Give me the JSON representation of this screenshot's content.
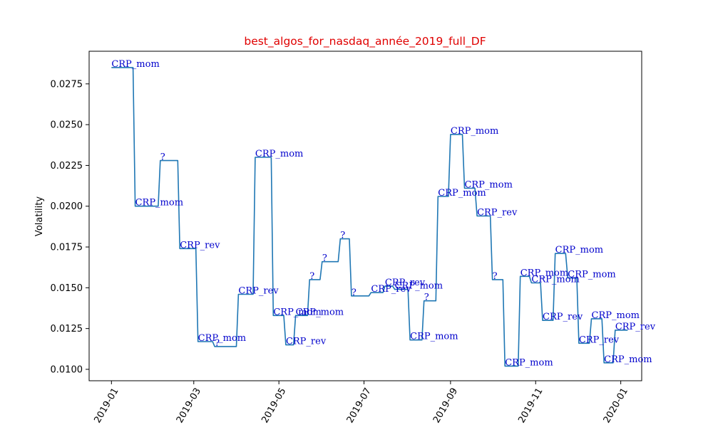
{
  "chart_data": {
    "type": "line",
    "title": "best_algos_for_nasdaq_année_2019_full_DF",
    "title_color": "#e00000",
    "xlabel": "",
    "ylabel": "Volatility",
    "line_color": "#1f77b4",
    "annotation_color": "#0000cc",
    "xlim": [
      "2018-12-16",
      "2020-01-16"
    ],
    "ylim": [
      0.0093,
      0.0295
    ],
    "x_ticks": [
      "2019-01",
      "2019-03",
      "2019-05",
      "2019-07",
      "2019-09",
      "2019-11",
      "2020-01"
    ],
    "y_ticks": [
      "0.0100",
      "0.0125",
      "0.0150",
      "0.0175",
      "0.0200",
      "0.0225",
      "0.0250",
      "0.0275"
    ],
    "grid": false,
    "steps": [
      {
        "x": "2019-01-01",
        "y": 0.0285,
        "label": "CRP_mom"
      },
      {
        "x": "2019-01-18",
        "y": 0.02,
        "label": "CRP_mom"
      },
      {
        "x": "2019-02-05",
        "y": 0.0228,
        "label": "?"
      },
      {
        "x": "2019-02-19",
        "y": 0.0174,
        "label": "CRP_rev"
      },
      {
        "x": "2019-03-04",
        "y": 0.0117,
        "label": "CRP_mom"
      },
      {
        "x": "2019-03-16",
        "y": 0.0114,
        "label": "?"
      },
      {
        "x": "2019-04-02",
        "y": 0.0146,
        "label": "CRP_rev"
      },
      {
        "x": "2019-04-14",
        "y": 0.023,
        "label": "CRP_mom"
      },
      {
        "x": "2019-04-27",
        "y": 0.0133,
        "label": "CRP_mom"
      },
      {
        "x": "2019-05-06",
        "y": 0.0115,
        "label": "CRP_rev"
      },
      {
        "x": "2019-05-13",
        "y": 0.0133,
        "label": "CRP_mom"
      },
      {
        "x": "2019-05-23",
        "y": 0.0155,
        "label": "?"
      },
      {
        "x": "2019-06-01",
        "y": 0.0166,
        "label": "?"
      },
      {
        "x": "2019-06-14",
        "y": 0.018,
        "label": "?"
      },
      {
        "x": "2019-06-22",
        "y": 0.0145,
        "label": "?"
      },
      {
        "x": "2019-07-06",
        "y": 0.0147,
        "label": "CRP_rev"
      },
      {
        "x": "2019-07-16",
        "y": 0.0151,
        "label": "CRP_rev"
      },
      {
        "x": "2019-07-23",
        "y": 0.0149,
        "label": "CRP_mom"
      },
      {
        "x": "2019-08-03",
        "y": 0.0118,
        "label": "CRP_mom"
      },
      {
        "x": "2019-08-13",
        "y": 0.0142,
        "label": "?"
      },
      {
        "x": "2019-08-23",
        "y": 0.0206,
        "label": "CRP_mom"
      },
      {
        "x": "2019-09-01",
        "y": 0.0244,
        "label": "CRP_mom"
      },
      {
        "x": "2019-09-11",
        "y": 0.0211,
        "label": "CRP_mom"
      },
      {
        "x": "2019-09-20",
        "y": 0.0194,
        "label": "CRP_rev"
      },
      {
        "x": "2019-10-01",
        "y": 0.0155,
        "label": "?"
      },
      {
        "x": "2019-10-10",
        "y": 0.0102,
        "label": "CRP_mom"
      },
      {
        "x": "2019-10-21",
        "y": 0.0157,
        "label": "CRP_mom"
      },
      {
        "x": "2019-10-29",
        "y": 0.0153,
        "label": "CRP_mom"
      },
      {
        "x": "2019-11-06",
        "y": 0.013,
        "label": "CRP_rev"
      },
      {
        "x": "2019-11-15",
        "y": 0.0171,
        "label": "CRP_mom"
      },
      {
        "x": "2019-11-24",
        "y": 0.0156,
        "label": "CRP_mom"
      },
      {
        "x": "2019-12-02",
        "y": 0.0116,
        "label": "CRP_rev"
      },
      {
        "x": "2019-12-11",
        "y": 0.0131,
        "label": "CRP_mom"
      },
      {
        "x": "2019-12-20",
        "y": 0.0104,
        "label": "CRP_mom"
      },
      {
        "x": "2019-12-28",
        "y": 0.0124,
        "label": "CRP_rev"
      }
    ],
    "end_x": "2020-01-06"
  }
}
